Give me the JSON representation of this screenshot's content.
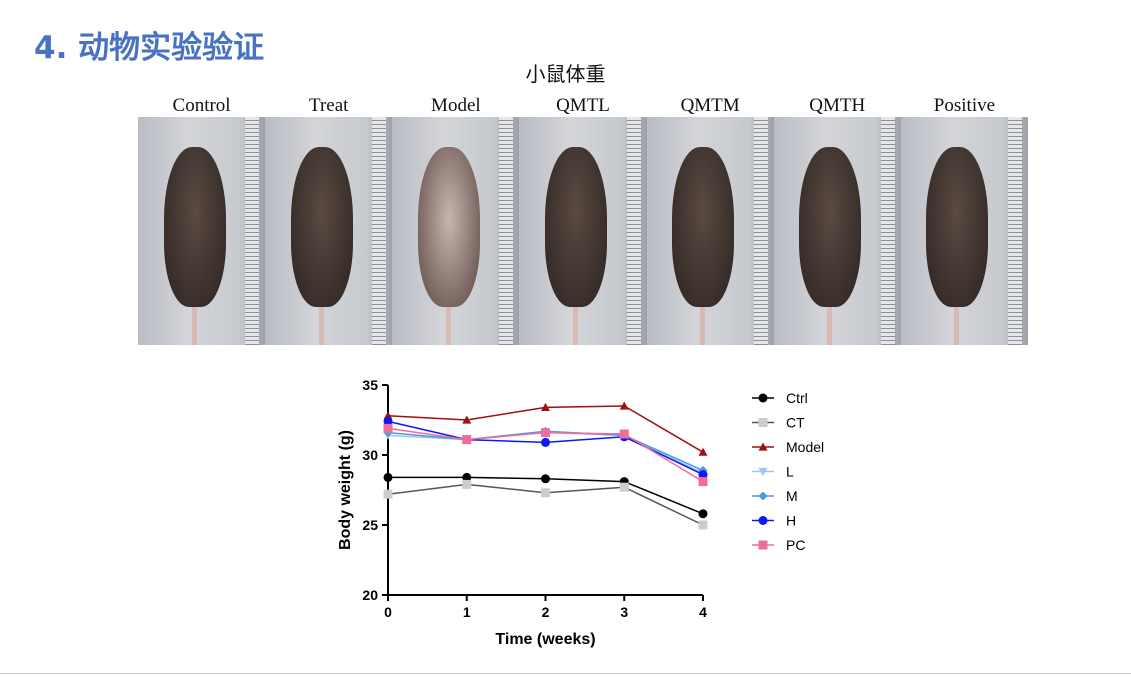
{
  "slide": {
    "title": "4. 动物实验验证",
    "subtitle": "小鼠体重"
  },
  "photo_groups": [
    "Control",
    "Treat",
    "Model",
    "QMTL",
    "QMTM",
    "QMTH",
    "Positive"
  ],
  "chart_data": {
    "type": "line",
    "xlabel": "Time (weeks)",
    "ylabel": "Body weight (g)",
    "x": [
      0,
      1,
      2,
      3,
      4
    ],
    "xlim": [
      0,
      4
    ],
    "ylim": [
      20,
      35
    ],
    "yticks": [
      20,
      25,
      30,
      35
    ],
    "legend_position": "right",
    "series": [
      {
        "name": "Ctrl",
        "color": "#000000",
        "marker": "circle",
        "values": [
          28.4,
          28.4,
          28.3,
          28.1,
          25.8
        ]
      },
      {
        "name": "CT",
        "color": "#555555",
        "markercolor": "#cccccc",
        "marker": "square",
        "values": [
          27.2,
          27.9,
          27.3,
          27.7,
          25.0
        ]
      },
      {
        "name": "Model",
        "color": "#a01010",
        "marker": "triangle",
        "values": [
          32.8,
          32.5,
          33.4,
          33.5,
          30.2
        ]
      },
      {
        "name": "L",
        "color": "#9cc8f0",
        "marker": "triangle-down",
        "values": [
          31.4,
          31.1,
          31.6,
          31.4,
          28.7
        ]
      },
      {
        "name": "M",
        "color": "#4a9ae8",
        "marker": "diamond",
        "values": [
          31.6,
          31.1,
          31.7,
          31.4,
          28.9
        ]
      },
      {
        "name": "H",
        "color": "#0a1af0",
        "marker": "circle",
        "values": [
          32.4,
          31.1,
          30.9,
          31.3,
          28.6
        ]
      },
      {
        "name": "PC",
        "color": "#f06c9c",
        "marker": "square",
        "values": [
          31.9,
          31.1,
          31.6,
          31.5,
          28.1
        ]
      }
    ]
  }
}
